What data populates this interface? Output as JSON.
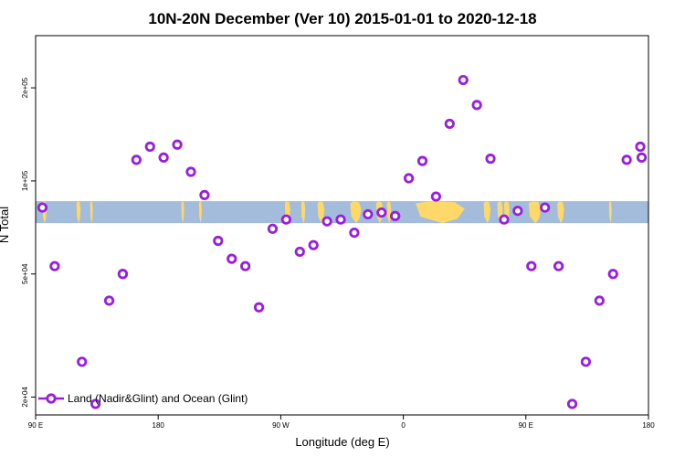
{
  "chart_data": {
    "type": "scatter",
    "title": "10N-20N December (Ver 10)   2015-01-01 to 2020-12-18",
    "xlabel": "Longitude (deg E)",
    "ylabel": "N Total",
    "xlim": [
      90,
      540
    ],
    "ylim": [
      17500,
      295000
    ],
    "y_scale": "log",
    "x_tick_values": [
      90,
      180,
      270,
      360,
      450,
      540
    ],
    "x_tick_labels": [
      "90 E",
      "180",
      "90 W",
      "0",
      "90 E",
      "180"
    ],
    "y_tick_values": [
      20000,
      50000,
      100000,
      200000
    ],
    "y_tick_labels": [
      "2e+04",
      "5e+04",
      "1e+05",
      "2e+05"
    ],
    "band": {
      "y_low": 73000,
      "y_high": 86000,
      "ocean_color": "#a4bcdc",
      "land_color": "#ffd86a"
    },
    "land_segments": [
      [
        95,
        98
      ],
      [
        120,
        123
      ],
      [
        130,
        132
      ],
      [
        197,
        199
      ],
      [
        210,
        212
      ],
      [
        273,
        277
      ],
      [
        285,
        288
      ],
      [
        297,
        302
      ],
      [
        321,
        329
      ],
      [
        340,
        345
      ],
      [
        348,
        351
      ],
      [
        369,
        405
      ],
      [
        419,
        424
      ],
      [
        429,
        433
      ],
      [
        434,
        438
      ],
      [
        452,
        461
      ],
      [
        473,
        478
      ],
      [
        511,
        513
      ]
    ],
    "series": [
      {
        "name": "Land (Nadir&Glint) and Ocean (Glint)",
        "color": "#9a1ee0",
        "x": [
          95,
          104,
          124,
          134,
          144,
          154,
          154,
          164,
          174,
          184,
          194,
          204,
          214,
          224,
          234,
          244,
          254,
          264,
          274,
          284,
          294,
          304,
          314,
          324,
          334,
          344,
          354,
          354,
          364,
          374,
          384,
          394,
          404,
          414,
          424,
          434,
          444,
          454,
          464,
          474,
          484,
          494,
          504,
          514,
          524,
          534,
          535
        ],
        "y": [
          82000,
          53000,
          26000,
          19000,
          41000,
          50000,
          50000,
          117000,
          129000,
          119000,
          131000,
          107000,
          90000,
          64000,
          56000,
          53000,
          39000,
          70000,
          75000,
          59000,
          62000,
          74000,
          75000,
          68000,
          78000,
          79000,
          77000,
          77000,
          102000,
          116000,
          89000,
          153000,
          212000,
          176000,
          118000,
          75000,
          80000,
          53000,
          82000,
          53000,
          19000,
          26000,
          41000,
          50000,
          117000,
          129000,
          119000
        ]
      }
    ],
    "legend": {
      "label": "Land (Nadir&Glint) and Ocean (Glint)",
      "placement": "bottom-left"
    }
  }
}
